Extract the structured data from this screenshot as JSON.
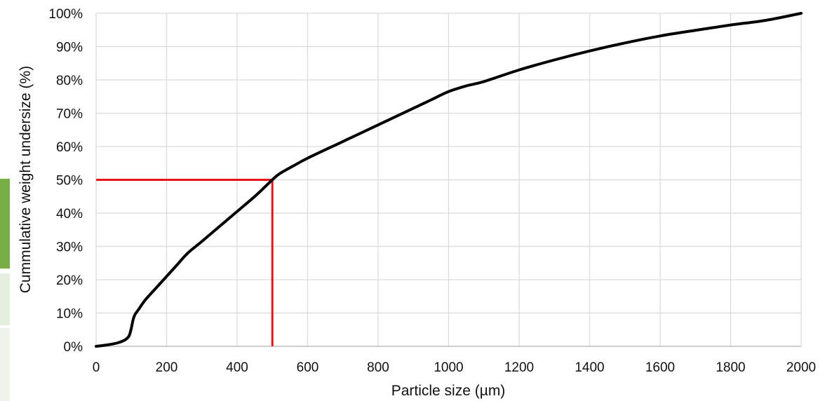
{
  "chart_data": {
    "type": "line",
    "title": "",
    "xlabel": "Particle size (µm)",
    "ylabel": "Cummulative weight undersize (%)",
    "xlim": [
      0,
      2000
    ],
    "ylim": [
      0,
      100
    ],
    "x_ticks": [
      "0",
      "200",
      "400",
      "600",
      "800",
      "1000",
      "1200",
      "1400",
      "1600",
      "1800",
      "2000"
    ],
    "y_ticks": [
      "0%",
      "10%",
      "20%",
      "30%",
      "40%",
      "50%",
      "60%",
      "70%",
      "80%",
      "90%",
      "100%"
    ],
    "grid": true,
    "legend": "none",
    "series": [
      {
        "color": "#000000",
        "x": [
          0,
          30,
          60,
          80,
          90,
          95,
          100,
          105,
          110,
          120,
          140,
          170,
          200,
          230,
          260,
          300,
          350,
          400,
          450,
          480,
          500,
          520,
          560,
          600,
          700,
          800,
          900,
          950,
          1000,
          1050,
          1100,
          1200,
          1300,
          1400,
          1500,
          1600,
          1700,
          1800,
          1900,
          2000
        ],
        "y": [
          0,
          0.4,
          1.0,
          1.8,
          2.6,
          3.5,
          5.5,
          8.0,
          9.5,
          11.0,
          14.0,
          17.5,
          21.0,
          24.5,
          28.0,
          31.5,
          36.0,
          40.5,
          45.0,
          48.0,
          50.0,
          51.8,
          54.2,
          56.5,
          61.5,
          66.5,
          71.5,
          74.0,
          76.5,
          78.2,
          79.5,
          83.0,
          86.0,
          88.7,
          91.1,
          93.2,
          94.9,
          96.5,
          97.9,
          100
        ]
      }
    ],
    "annotations": [
      {
        "type": "guide",
        "color": "#e8141b",
        "x": 500,
        "y": 50
      }
    ]
  },
  "side_panel": {
    "colors": [
      "#79ad45",
      "#e6eee0",
      "#eef3eb"
    ]
  }
}
